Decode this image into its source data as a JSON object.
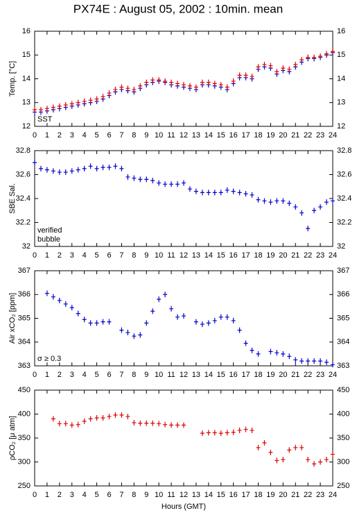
{
  "title": "PX74E : August 05, 2002 : 10min. mean",
  "chart_data": [
    {
      "type": "scatter",
      "ylabel": "Temp. [°C]",
      "x": [
        0,
        0.5,
        1,
        1.5,
        2,
        2.5,
        3,
        3.5,
        4,
        4.5,
        5,
        5.5,
        6,
        6.5,
        7,
        7.5,
        8,
        8.5,
        9,
        9.5,
        10,
        10.5,
        11,
        11.5,
        12,
        12.5,
        13,
        13.5,
        14,
        14.5,
        15,
        15.5,
        16,
        16.5,
        17,
        17.5,
        18,
        18.5,
        19,
        19.5,
        20,
        20.5,
        21,
        21.5,
        22,
        22.5,
        23,
        23.5,
        24
      ],
      "series": [
        {
          "name": "SST",
          "color": "#0000cc",
          "values": [
            12.6,
            12.6,
            12.65,
            12.7,
            12.75,
            12.8,
            12.85,
            12.9,
            12.95,
            13.0,
            13.05,
            13.15,
            13.3,
            13.45,
            13.55,
            13.5,
            13.45,
            13.6,
            13.75,
            13.85,
            13.9,
            13.85,
            13.75,
            13.7,
            13.65,
            13.6,
            13.55,
            13.75,
            13.75,
            13.7,
            13.65,
            13.55,
            13.8,
            14.05,
            14.05,
            14.0,
            14.4,
            14.5,
            14.45,
            14.2,
            14.35,
            14.3,
            14.5,
            14.7,
            14.85,
            14.85,
            14.9,
            15.0,
            15.1
          ]
        },
        {
          "color": "#dd0000",
          "values": [
            12.7,
            12.7,
            12.75,
            12.8,
            12.85,
            12.9,
            12.95,
            13.0,
            13.05,
            13.1,
            13.15,
            13.25,
            13.4,
            13.55,
            13.65,
            13.6,
            13.55,
            13.7,
            13.85,
            13.95,
            13.95,
            13.9,
            13.85,
            13.8,
            13.75,
            13.7,
            13.65,
            13.85,
            13.85,
            13.8,
            13.75,
            13.65,
            13.9,
            14.15,
            14.15,
            14.1,
            14.5,
            14.6,
            14.55,
            14.3,
            14.45,
            14.4,
            14.6,
            14.8,
            14.9,
            14.9,
            14.95,
            15.05,
            15.15
          ]
        }
      ],
      "xlim": [
        0,
        24
      ],
      "xticks": [
        0,
        1,
        2,
        3,
        4,
        5,
        6,
        7,
        8,
        9,
        10,
        11,
        12,
        13,
        14,
        15,
        16,
        17,
        18,
        19,
        20,
        21,
        22,
        23,
        24
      ],
      "ylim": [
        12,
        16
      ],
      "yticks": [
        12,
        13,
        14,
        15,
        16
      ]
    },
    {
      "type": "scatter",
      "ylabel": "SBE Sal.",
      "x": [
        0,
        0.5,
        1,
        1.5,
        2,
        2.5,
        3,
        3.5,
        4,
        4.5,
        5,
        5.5,
        6,
        6.5,
        7,
        7.5,
        8,
        8.5,
        9,
        9.5,
        10,
        10.5,
        11,
        11.5,
        12,
        12.5,
        13,
        13.5,
        14,
        14.5,
        15,
        15.5,
        16,
        16.5,
        17,
        17.5,
        18,
        18.5,
        19,
        19.5,
        20,
        20.5,
        21,
        21.5,
        22,
        22.5,
        23,
        23.5,
        24
      ],
      "series": [
        {
          "name": "verified",
          "color": "#0000cc",
          "values": [
            32.7,
            32.65,
            32.64,
            32.63,
            32.62,
            32.62,
            32.63,
            32.64,
            32.65,
            32.67,
            32.65,
            32.66,
            32.66,
            32.67,
            32.65,
            32.58,
            32.57,
            32.56,
            32.56,
            32.55,
            32.53,
            32.52,
            32.52,
            32.52,
            32.53,
            32.48,
            32.46,
            32.45,
            32.45,
            32.45,
            32.45,
            32.47,
            32.46,
            32.45,
            32.44,
            32.43,
            32.39,
            32.38,
            32.37,
            32.38,
            32.38,
            32.36,
            32.33,
            32.28,
            32.15,
            32.3,
            32.33,
            32.37,
            32.38
          ]
        }
      ],
      "annotations": [
        {
          "text": "bubble",
          "color": "#cc00cc"
        }
      ],
      "xlim": [
        0,
        24
      ],
      "xticks": [
        0,
        1,
        2,
        3,
        4,
        5,
        6,
        7,
        8,
        9,
        10,
        11,
        12,
        13,
        14,
        15,
        16,
        17,
        18,
        19,
        20,
        21,
        22,
        23,
        24
      ],
      "ylim": [
        32,
        32.8
      ],
      "yticks": [
        32,
        32.2,
        32.4,
        32.6,
        32.8
      ]
    },
    {
      "type": "scatter",
      "ylabel": "Air xCO₂ [ppm]",
      "x": [
        0,
        0.5,
        1,
        1.5,
        2,
        2.5,
        3,
        3.5,
        4,
        4.5,
        5,
        5.5,
        6,
        6.5,
        7,
        7.5,
        8,
        8.5,
        9,
        9.5,
        10,
        10.5,
        11,
        11.5,
        12,
        12.5,
        13,
        13.5,
        14,
        14.5,
        15,
        15.5,
        16,
        16.5,
        17,
        17.5,
        18,
        18.5,
        19,
        19.5,
        20,
        20.5,
        21,
        21.5,
        22,
        22.5,
        23,
        23.5,
        24
      ],
      "series": [
        {
          "color": "#0000cc",
          "values": [
            null,
            null,
            366.05,
            365.9,
            365.75,
            365.6,
            365.45,
            365.2,
            364.95,
            364.8,
            364.8,
            364.85,
            364.85,
            null,
            364.5,
            364.4,
            364.25,
            364.3,
            364.8,
            365.3,
            365.8,
            366.0,
            365.4,
            365.05,
            365.1,
            null,
            364.85,
            364.75,
            364.8,
            364.9,
            365.05,
            365.05,
            364.9,
            364.5,
            363.95,
            363.65,
            363.5,
            null,
            363.6,
            363.55,
            363.5,
            363.4,
            363.25,
            363.2,
            363.2,
            363.2,
            363.2,
            363.15,
            363.05
          ]
        }
      ],
      "annotations": [
        {
          "text": "σ ≥ 0.3",
          "color": "#cc00cc"
        }
      ],
      "xlim": [
        0,
        24
      ],
      "xticks": [
        0,
        1,
        2,
        3,
        4,
        5,
        6,
        7,
        8,
        9,
        10,
        11,
        12,
        13,
        14,
        15,
        16,
        17,
        18,
        19,
        20,
        21,
        22,
        23,
        24
      ],
      "ylim": [
        363,
        367
      ],
      "yticks": [
        363,
        364,
        365,
        366,
        367
      ]
    },
    {
      "type": "scatter",
      "ylabel": "ρCO₂ [μ atm]",
      "xlabel": "Hours (GMT)",
      "x": [
        0,
        0.5,
        1,
        1.5,
        2,
        2.5,
        3,
        3.5,
        4,
        4.5,
        5,
        5.5,
        6,
        6.5,
        7,
        7.5,
        8,
        8.5,
        9,
        9.5,
        10,
        10.5,
        11,
        11.5,
        12,
        12.5,
        13,
        13.5,
        14,
        14.5,
        15,
        15.5,
        16,
        16.5,
        17,
        17.5,
        18,
        18.5,
        19,
        19.5,
        20,
        20.5,
        21,
        21.5,
        22,
        22.5,
        23,
        23.5,
        24
      ],
      "series": [
        {
          "color": "#dd0000",
          "values": [
            null,
            null,
            null,
            390,
            380,
            380,
            377,
            378,
            385,
            390,
            392,
            392,
            395,
            398,
            398,
            395,
            382,
            381,
            381,
            381,
            380,
            378,
            377,
            377,
            377,
            null,
            null,
            360,
            361,
            361,
            360,
            361,
            362,
            366,
            368,
            366,
            330,
            340,
            320,
            303,
            305,
            325,
            330,
            330,
            305,
            296,
            300,
            305,
            316
          ]
        }
      ],
      "xlim": [
        0,
        24
      ],
      "xticks": [
        0,
        1,
        2,
        3,
        4,
        5,
        6,
        7,
        8,
        9,
        10,
        11,
        12,
        13,
        14,
        15,
        16,
        17,
        18,
        19,
        20,
        21,
        22,
        23,
        24
      ],
      "ylim": [
        250,
        450
      ],
      "yticks": [
        250,
        300,
        350,
        400,
        450
      ]
    }
  ]
}
